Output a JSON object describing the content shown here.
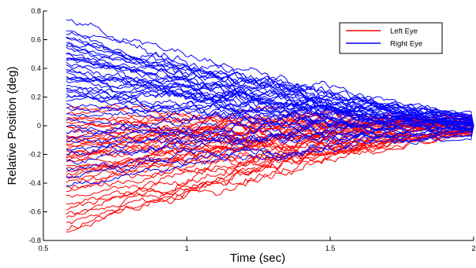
{
  "chart_data": {
    "type": "line",
    "title": "",
    "xlabel": "Time (sec)",
    "ylabel": "Relative Position (deg)",
    "xlim": [
      0.5,
      2
    ],
    "ylim": [
      -0.8,
      0.8
    ],
    "xticks": [
      0.5,
      1,
      1.5,
      2
    ],
    "xtick_labels": [
      "0.5",
      "1",
      "1.5",
      "2"
    ],
    "yticks": [
      -0.8,
      -0.6,
      -0.4,
      -0.2,
      0,
      0.2,
      0.4,
      0.6,
      0.8
    ],
    "ytick_labels": [
      "-0.8",
      "-0.6",
      "-0.4",
      "-0.2",
      "0",
      "0.2",
      "0.4",
      "0.6",
      "0.8"
    ],
    "grid": false,
    "legend_position": "top-right",
    "x_start": 0.58,
    "x_end": 2.0,
    "series": [
      {
        "name": "Left Eye",
        "color": "#ff0000",
        "start_values": [
          -0.74,
          -0.72,
          -0.68,
          -0.64,
          -0.6,
          -0.57,
          -0.54,
          -0.5,
          -0.46,
          -0.43,
          -0.4,
          -0.37,
          -0.35,
          -0.32,
          -0.3,
          -0.28,
          -0.26,
          -0.24,
          -0.22,
          -0.2,
          -0.18,
          -0.16,
          -0.14,
          -0.12,
          -0.1,
          -0.08,
          -0.06,
          -0.04,
          -0.02,
          0.0,
          0.02,
          0.04,
          0.06,
          0.08,
          0.12,
          -0.33,
          -0.21,
          -0.11
        ],
        "end_values": [
          -0.02,
          -0.03,
          -0.05,
          -0.04,
          -0.06,
          -0.02,
          -0.03,
          -0.07,
          -0.05,
          -0.01,
          -0.04,
          -0.06,
          0.01,
          -0.03,
          -0.02,
          0.02,
          -0.05,
          0.03,
          0.0,
          -0.01,
          0.02,
          0.04,
          -0.02,
          0.05,
          0.03,
          0.06,
          0.01,
          -0.03,
          0.02,
          0.04,
          0.03,
          0.05,
          0.02,
          0.07,
          0.04,
          -0.04,
          0.01,
          0.06
        ]
      },
      {
        "name": "Right Eye",
        "color": "#0000ff",
        "start_values": [
          0.74,
          0.66,
          0.64,
          0.62,
          0.6,
          0.58,
          0.56,
          0.54,
          0.52,
          0.5,
          0.48,
          0.46,
          0.44,
          0.42,
          0.4,
          0.38,
          0.36,
          0.34,
          0.32,
          0.3,
          0.28,
          0.26,
          0.24,
          0.22,
          0.2,
          0.18,
          0.16,
          0.12,
          0.08,
          0.04,
          0.0,
          -0.04,
          -0.08,
          -0.12,
          -0.16,
          -0.2,
          -0.26,
          -0.3,
          -0.36,
          -0.42,
          0.55,
          0.47,
          0.35,
          0.25
        ],
        "end_values": [
          0.08,
          0.06,
          0.05,
          0.03,
          0.07,
          0.04,
          0.02,
          0.06,
          0.01,
          0.05,
          0.03,
          -0.01,
          0.04,
          0.02,
          0.06,
          0.0,
          0.03,
          -0.02,
          0.05,
          0.01,
          0.04,
          0.02,
          -0.03,
          0.03,
          0.0,
          0.02,
          -0.04,
          0.01,
          -0.02,
          0.03,
          -0.05,
          0.0,
          -0.03,
          -0.06,
          -0.01,
          -0.04,
          -0.02,
          -0.07,
          -0.03,
          -0.05,
          0.07,
          0.05,
          0.02,
          0.04
        ]
      }
    ]
  }
}
